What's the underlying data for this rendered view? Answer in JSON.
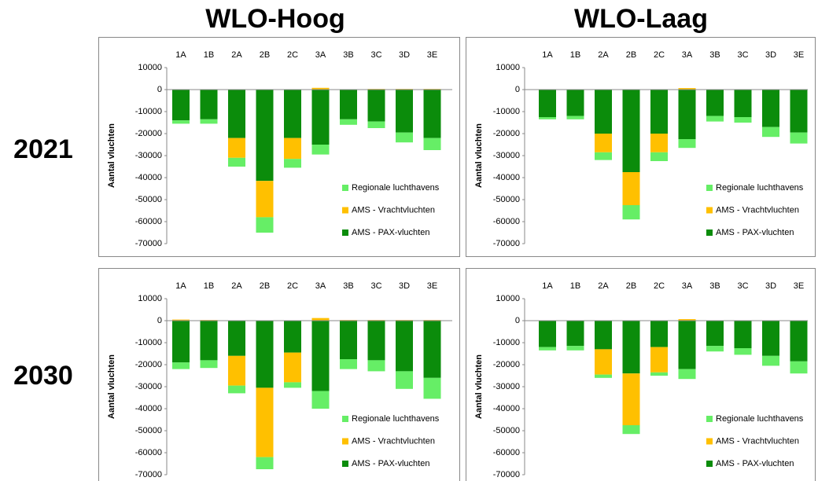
{
  "column_titles": [
    "WLO-Hoog",
    "WLO-Laag"
  ],
  "row_labels": [
    "2021",
    "2030"
  ],
  "chart_data": [
    {
      "type": "bar",
      "stacked": true,
      "y_axis_label": "Aantal vluchten",
      "categories": [
        "1A",
        "1B",
        "2A",
        "2B",
        "2C",
        "3A",
        "3B",
        "3C",
        "3D",
        "3E"
      ],
      "ylim": [
        -70000,
        10000
      ],
      "yticks": [
        10000,
        0,
        -10000,
        -20000,
        -30000,
        -40000,
        -50000,
        -60000,
        -70000
      ],
      "grid": false,
      "series": [
        {
          "name": "AMS - PAX-vluchten",
          "color": "#0b8c0b",
          "values": [
            -14000,
            -13500,
            -22000,
            -41500,
            -22000,
            -25000,
            -13500,
            -14500,
            -19500,
            -22000
          ]
        },
        {
          "name": "AMS - Vrachtvluchten",
          "color": "#ffc000",
          "values": [
            0,
            0,
            -9000,
            -16500,
            -9500,
            800,
            0,
            300,
            300,
            300
          ]
        },
        {
          "name": "Regionale luchthavens",
          "color": "#66ee66",
          "values": [
            -1500,
            -2000,
            -4000,
            -7000,
            -4000,
            -4500,
            -2500,
            -3000,
            -4500,
            -5500
          ]
        }
      ]
    },
    {
      "type": "bar",
      "stacked": true,
      "y_axis_label": "Aantal vluchten",
      "categories": [
        "1A",
        "1B",
        "2A",
        "2B",
        "2C",
        "3A",
        "3B",
        "3C",
        "3D",
        "3E"
      ],
      "ylim": [
        -70000,
        10000
      ],
      "yticks": [
        10000,
        0,
        -10000,
        -20000,
        -30000,
        -40000,
        -50000,
        -60000,
        -70000
      ],
      "grid": false,
      "series": [
        {
          "name": "AMS - PAX-vluchten",
          "color": "#0b8c0b",
          "values": [
            -12500,
            -12000,
            -20000,
            -37500,
            -20000,
            -22500,
            -12000,
            -12500,
            -17000,
            -19500
          ]
        },
        {
          "name": "AMS - Vrachtvluchten",
          "color": "#ffc000",
          "values": [
            0,
            0,
            -8500,
            -15000,
            -8500,
            700,
            0,
            0,
            0,
            0
          ]
        },
        {
          "name": "Regionale luchthavens",
          "color": "#66ee66",
          "values": [
            -1000,
            -1500,
            -3500,
            -6500,
            -4000,
            -4000,
            -2500,
            -2500,
            -4500,
            -5000
          ]
        }
      ]
    },
    {
      "type": "bar",
      "stacked": true,
      "y_axis_label": "Aantal vluchten",
      "categories": [
        "1A",
        "1B",
        "2A",
        "2B",
        "2C",
        "3A",
        "3B",
        "3C",
        "3D",
        "3E"
      ],
      "ylim": [
        -70000,
        10000
      ],
      "yticks": [
        10000,
        0,
        -10000,
        -20000,
        -30000,
        -40000,
        -50000,
        -60000,
        -70000
      ],
      "grid": false,
      "series": [
        {
          "name": "AMS - PAX-vluchten",
          "color": "#0b8c0b",
          "values": [
            -19000,
            -18000,
            -16000,
            -30500,
            -14500,
            -32000,
            -17500,
            -18000,
            -23000,
            -26000
          ]
        },
        {
          "name": "AMS - Vrachtvluchten",
          "color": "#ffc000",
          "values": [
            500,
            300,
            -13500,
            -31500,
            -13500,
            1200,
            300,
            300,
            300,
            300
          ]
        },
        {
          "name": "Regionale luchthavens",
          "color": "#66ee66",
          "values": [
            -3000,
            -3500,
            -3500,
            -5500,
            -2500,
            -8000,
            -4500,
            -5000,
            -8000,
            -9500
          ]
        }
      ]
    },
    {
      "type": "bar",
      "stacked": true,
      "y_axis_label": "Aantal vluchten",
      "categories": [
        "1A",
        "1B",
        "2A",
        "2B",
        "2C",
        "3A",
        "3B",
        "3C",
        "3D",
        "3E"
      ],
      "ylim": [
        -70000,
        10000
      ],
      "yticks": [
        10000,
        0,
        -10000,
        -20000,
        -30000,
        -40000,
        -50000,
        -60000,
        -70000
      ],
      "grid": false,
      "series": [
        {
          "name": "AMS - PAX-vluchten",
          "color": "#0b8c0b",
          "values": [
            -12000,
            -11500,
            -13000,
            -24000,
            -12000,
            -22000,
            -11500,
            -12500,
            -16000,
            -18500
          ]
        },
        {
          "name": "AMS - Vrachtvluchten",
          "color": "#ffc000",
          "values": [
            0,
            0,
            -11500,
            -23500,
            -11500,
            700,
            0,
            0,
            0,
            0
          ]
        },
        {
          "name": "Regionale luchthavens",
          "color": "#66ee66",
          "values": [
            -1500,
            -2000,
            -1500,
            -4000,
            -1500,
            -4500,
            -2500,
            -3000,
            -4500,
            -5500
          ]
        }
      ]
    }
  ]
}
